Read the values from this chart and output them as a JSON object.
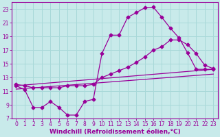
{
  "xlabel": "Windchill (Refroidissement éolien,°C)",
  "bg_color": "#c8eaea",
  "grid_color": "#a8d8d8",
  "line_color": "#990099",
  "xlim": [
    -0.5,
    23.5
  ],
  "ylim": [
    7,
    24
  ],
  "xticks": [
    0,
    1,
    2,
    3,
    4,
    5,
    6,
    7,
    8,
    9,
    10,
    11,
    12,
    13,
    14,
    15,
    16,
    17,
    18,
    19,
    20,
    21,
    22,
    23
  ],
  "yticks": [
    7,
    9,
    11,
    13,
    15,
    17,
    19,
    21,
    23
  ],
  "line1_x": [
    0,
    1,
    2,
    3,
    4,
    5,
    6,
    7,
    8,
    9,
    10,
    11,
    12,
    13,
    14,
    15,
    16,
    17,
    18,
    19,
    20,
    21,
    22,
    23
  ],
  "line1_y": [
    11.8,
    11.2,
    8.6,
    8.6,
    9.5,
    8.6,
    7.5,
    7.5,
    9.5,
    9.8,
    16.5,
    19.2,
    19.2,
    21.8,
    22.5,
    23.2,
    23.3,
    21.8,
    20.2,
    18.8,
    16.6,
    14.2,
    14.2,
    14.2
  ],
  "line2_x": [
    0,
    1,
    2,
    3,
    4,
    5,
    6,
    7,
    8,
    9,
    10,
    11,
    12,
    13,
    14,
    15,
    16,
    17,
    18,
    19,
    20,
    21,
    22,
    23
  ],
  "line2_y": [
    12.0,
    11.8,
    11.5,
    11.5,
    11.5,
    11.5,
    11.8,
    11.8,
    11.8,
    12.0,
    13.0,
    13.5,
    14.0,
    14.5,
    15.2,
    16.0,
    17.0,
    17.5,
    18.5,
    18.5,
    17.8,
    16.5,
    14.8,
    14.3
  ],
  "line3_x": [
    0,
    23
  ],
  "line3_y": [
    11.8,
    14.2
  ],
  "line4_x": [
    0,
    23
  ],
  "line4_y": [
    11.3,
    13.5
  ],
  "xlabel_fontsize": 6.5,
  "tick_fontsize": 5.5
}
